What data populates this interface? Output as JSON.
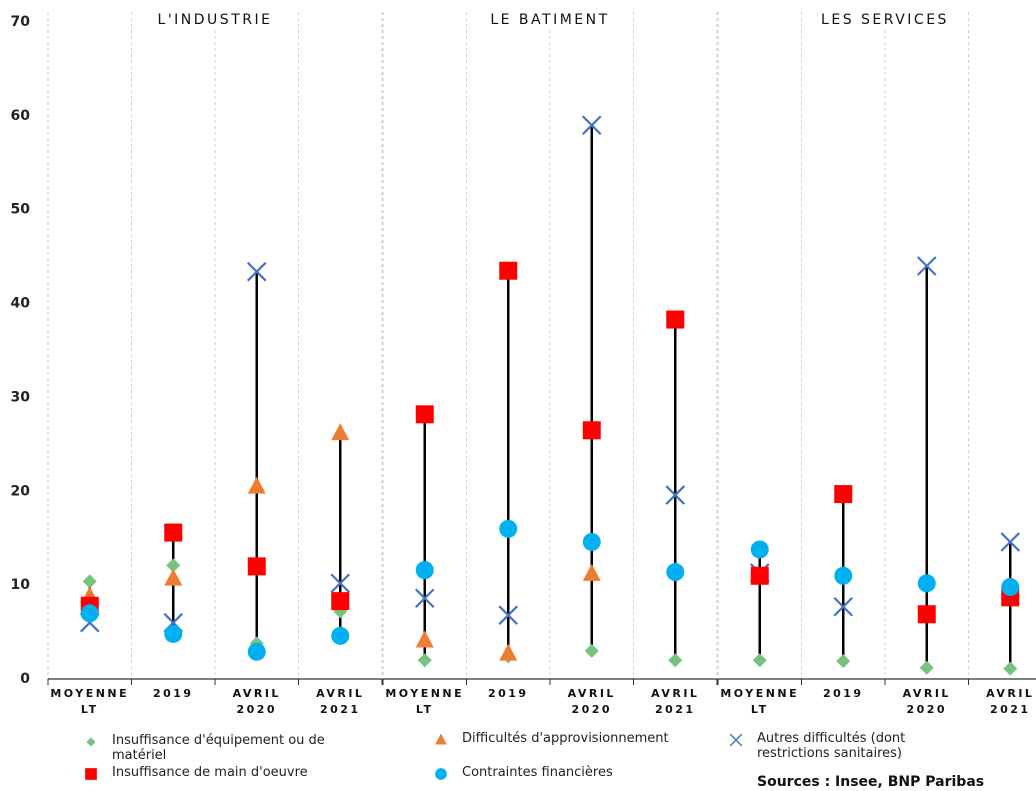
{
  "chart_data": {
    "type": "dot",
    "categories": [
      "MOYENNE LT",
      "2019",
      "AVRIL 2020",
      "AVRIL 2021"
    ],
    "ylim": [
      0,
      70
    ],
    "yticks": [
      0,
      10,
      20,
      30,
      40,
      50,
      60,
      70
    ],
    "series": [
      {
        "name": "Insuffisance d'équipement ou de matériel",
        "color": "#77c27f",
        "marker": "diamond"
      },
      {
        "name": "Difficultés d'approvisionnement",
        "color": "#ed7d31",
        "marker": "triangle"
      },
      {
        "name": "Autres difficultés (dont restrictions sanitaires)",
        "color": "#4472c4",
        "marker": "x"
      },
      {
        "name": "Insuffisance de main d'oeuvre",
        "color": "#ff0000",
        "marker": "square"
      },
      {
        "name": "Contraintes financières",
        "color": "#00b0f0",
        "marker": "circle"
      }
    ],
    "panels": [
      {
        "title": "L'INDUSTRIE",
        "series": [
          {
            "values": [
              10.4,
              12.1,
              3.8,
              7.2
            ]
          },
          {
            "values": [
              8.8,
              10.7,
              20.5,
              26.2
            ]
          },
          {
            "values": [
              6.0,
              6.0,
              43.4,
              10.2
            ]
          },
          {
            "values": [
              7.8,
              15.6,
              12.0,
              8.3
            ]
          },
          {
            "values": [
              7.0,
              4.8,
              2.9,
              4.6
            ]
          }
        ]
      },
      {
        "title": "LE BATIMENT",
        "series": [
          {
            "values": [
              2.0,
              2.4,
              3.0,
              2.0
            ]
          },
          {
            "values": [
              4.1,
              2.7,
              11.2,
              null
            ]
          },
          {
            "values": [
              8.6,
              6.8,
              59.0,
              19.6
            ]
          },
          {
            "values": [
              28.2,
              43.5,
              26.5,
              38.3
            ]
          },
          {
            "values": [
              11.6,
              16.0,
              14.6,
              11.4
            ]
          }
        ]
      },
      {
        "title": "LES SERVICES",
        "series": [
          {
            "values": [
              2.0,
              1.9,
              1.2,
              1.1
            ]
          },
          {
            "values": [
              null,
              null,
              null,
              null
            ]
          },
          {
            "values": [
              11.3,
              7.7,
              44.0,
              14.6
            ]
          },
          {
            "values": [
              11.0,
              19.7,
              6.9,
              8.7
            ]
          },
          {
            "values": [
              13.8,
              11.0,
              10.2,
              9.8
            ]
          }
        ]
      }
    ],
    "source": "Sources : Insee, BNP Paribas"
  }
}
